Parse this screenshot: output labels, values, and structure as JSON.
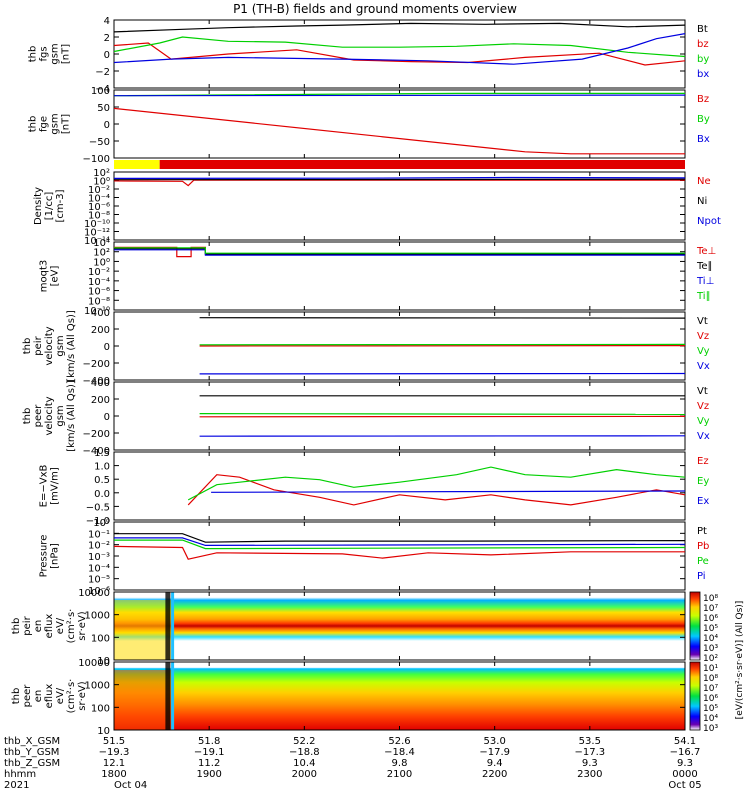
{
  "figure": {
    "title": "P1 (TH-B) fields and ground moments overview"
  },
  "colors": {
    "black": "#000000",
    "red": "#e00000",
    "green": "#00d000",
    "blue": "#0000e0",
    "yellow": "#ffff00"
  },
  "chart_data": [
    {
      "type": "line",
      "panel": "fgs_gsm",
      "ylabel": [
        "thb",
        "fgs",
        "gsm",
        "[nT]"
      ],
      "yticks": [
        "4",
        "2",
        "0",
        "−2",
        "−4"
      ],
      "ylim": [
        -4,
        4
      ],
      "series": [
        {
          "name": "Bt",
          "color": "black",
          "values": [
            [
              0,
              2.6
            ],
            [
              0.12,
              2.9
            ],
            [
              0.2,
              3.1
            ],
            [
              0.32,
              3.3
            ],
            [
              0.4,
              3.4
            ],
            [
              0.52,
              3.6
            ],
            [
              0.65,
              3.5
            ],
            [
              0.78,
              3.6
            ],
            [
              0.9,
              3.2
            ],
            [
              1.0,
              3.4
            ]
          ]
        },
        {
          "name": "bz",
          "color": "red",
          "values": [
            [
              0,
              1.0
            ],
            [
              0.06,
              1.3
            ],
            [
              0.1,
              -0.6
            ],
            [
              0.2,
              0.0
            ],
            [
              0.32,
              0.5
            ],
            [
              0.42,
              -0.7
            ],
            [
              0.52,
              -0.9
            ],
            [
              0.62,
              -1.0
            ],
            [
              0.72,
              -0.4
            ],
            [
              0.85,
              0.1
            ],
            [
              0.93,
              -1.3
            ],
            [
              1.0,
              -0.8
            ]
          ]
        },
        {
          "name": "by",
          "color": "green",
          "values": [
            [
              0,
              0.3
            ],
            [
              0.08,
              1.3
            ],
            [
              0.12,
              2.0
            ],
            [
              0.2,
              1.5
            ],
            [
              0.3,
              1.4
            ],
            [
              0.4,
              0.8
            ],
            [
              0.5,
              0.8
            ],
            [
              0.6,
              0.9
            ],
            [
              0.7,
              1.2
            ],
            [
              0.8,
              1.0
            ],
            [
              0.9,
              0.2
            ],
            [
              1.0,
              -0.3
            ]
          ]
        },
        {
          "name": "bx",
          "color": "blue",
          "values": [
            [
              0,
              -1.0
            ],
            [
              0.1,
              -0.6
            ],
            [
              0.2,
              -0.4
            ],
            [
              0.4,
              -0.6
            ],
            [
              0.55,
              -0.8
            ],
            [
              0.7,
              -1.2
            ],
            [
              0.82,
              -0.6
            ],
            [
              0.9,
              0.7
            ],
            [
              0.95,
              1.8
            ],
            [
              1.0,
              2.4
            ]
          ]
        }
      ]
    },
    {
      "type": "line",
      "panel": "fge_gsm",
      "ylabel": [
        "thb",
        "fge",
        "gsm",
        "[nT]"
      ],
      "yticks": [
        "100",
        "50",
        "0",
        "−50",
        "−100"
      ],
      "ylim": [
        -130,
        110
      ],
      "series": [
        {
          "name": "Bz",
          "color": "red",
          "values": [
            [
              0,
              45
            ],
            [
              0.72,
              -108
            ],
            [
              0.8,
              -115
            ],
            [
              1.0,
              -115
            ]
          ]
        },
        {
          "name": "By",
          "color": "green",
          "values": [
            [
              0,
              90
            ],
            [
              0.6,
              98
            ],
            [
              1.0,
              98
            ]
          ]
        },
        {
          "name": "Bx",
          "color": "blue",
          "values": [
            [
              0,
              90
            ],
            [
              1.0,
              92
            ]
          ]
        }
      ]
    },
    {
      "type": "line",
      "panel": "density",
      "ylabel": [
        "Density",
        "[1/cc]",
        "[cm-3]"
      ],
      "yticks": [
        "10²",
        "10⁰",
        "10⁻²",
        "10⁻⁴",
        "10⁻⁶",
        "10⁻⁸",
        "10⁻¹⁰",
        "10⁻¹²",
        "10⁻¹⁴"
      ],
      "ylim": [
        -14,
        2
      ],
      "series": [
        {
          "name": "Ne",
          "color": "red",
          "values": [
            [
              0,
              -0.1
            ],
            [
              0.12,
              -0.2
            ],
            [
              0.13,
              -1.2
            ],
            [
              0.14,
              0.1
            ],
            [
              1.0,
              0.1
            ]
          ]
        },
        {
          "name": "Ni",
          "color": "black",
          "values": [
            [
              0,
              0.2
            ],
            [
              1.0,
              0.3
            ]
          ]
        },
        {
          "name": "Npot",
          "color": "blue",
          "values": [
            [
              0,
              0.5
            ],
            [
              0.4,
              0.55
            ],
            [
              0.7,
              0.7
            ],
            [
              1.0,
              0.6
            ]
          ]
        }
      ]
    },
    {
      "type": "line",
      "panel": "temperature",
      "ylabel": [
        "moqt3",
        "[eV]"
      ],
      "yticks": [
        "10⁴",
        "10²",
        "10⁰",
        "10⁻²",
        "10⁻⁴",
        "10⁻⁶",
        "10⁻⁸",
        "10⁻¹⁰"
      ],
      "ylim": [
        -10,
        4
      ],
      "series": [
        {
          "name": "Te⊥",
          "color": "red",
          "values": [
            [
              0,
              2.9
            ],
            [
              0.11,
              2.9
            ],
            [
              0.11,
              1.0
            ],
            [
              0.135,
              1.0
            ],
            [
              0.135,
              2.9
            ],
            [
              0.16,
              2.9
            ],
            [
              0.16,
              1.6
            ],
            [
              1.0,
              1.6
            ]
          ]
        },
        {
          "name": "Te∥",
          "color": "black",
          "values": [
            [
              0,
              2.6
            ],
            [
              0.16,
              2.6
            ],
            [
              0.16,
              1.5
            ],
            [
              1.0,
              1.5
            ]
          ]
        },
        {
          "name": "Ti⊥",
          "color": "blue",
          "values": [
            [
              0,
              2.4
            ],
            [
              0.16,
              2.4
            ],
            [
              0.16,
              1.3
            ],
            [
              1.0,
              1.3
            ]
          ]
        },
        {
          "name": "Ti∥",
          "color": "green",
          "values": [
            [
              0,
              2.8
            ],
            [
              0.16,
              2.8
            ],
            [
              0.16,
              1.7
            ],
            [
              1.0,
              1.7
            ]
          ]
        }
      ]
    },
    {
      "type": "line",
      "panel": "peir_velocity",
      "ylabel": [
        "thb",
        "peir",
        "velocity",
        "gsm",
        "[km/s (All Qs)]"
      ],
      "yticks": [
        "400",
        "200",
        "0",
        "−200",
        "−400"
      ],
      "ylim": [
        -420,
        420
      ],
      "series": [
        {
          "name": "Vt",
          "color": "black",
          "values": [
            [
              0.15,
              350
            ],
            [
              1.0,
              345
            ]
          ]
        },
        {
          "name": "Vz",
          "color": "red",
          "values": [
            [
              0.15,
              0
            ],
            [
              1.0,
              5
            ]
          ]
        },
        {
          "name": "Vy",
          "color": "green",
          "values": [
            [
              0.15,
              15
            ],
            [
              1.0,
              20
            ]
          ]
        },
        {
          "name": "Vx",
          "color": "blue",
          "values": [
            [
              0.15,
              -345
            ],
            [
              1.0,
              -340
            ]
          ]
        }
      ]
    },
    {
      "type": "line",
      "panel": "peer_velocity",
      "ylabel": [
        "thb",
        "peer",
        "velocity",
        "gsm",
        "[km/s (All Qs)]"
      ],
      "yticks": [
        "400",
        "200",
        "0",
        "−200",
        "−400"
      ],
      "ylim": [
        -420,
        420
      ],
      "series": [
        {
          "name": "Vt",
          "color": "black",
          "values": [
            [
              0.15,
              250
            ],
            [
              1.0,
              250
            ]
          ]
        },
        {
          "name": "Vz",
          "color": "red",
          "values": [
            [
              0.15,
              -10
            ],
            [
              1.0,
              -5
            ]
          ]
        },
        {
          "name": "Vy",
          "color": "green",
          "values": [
            [
              0.15,
              30
            ],
            [
              1.0,
              20
            ]
          ]
        },
        {
          "name": "Vx",
          "color": "blue",
          "values": [
            [
              0.15,
              -250
            ],
            [
              1.0,
              -245
            ]
          ]
        }
      ]
    },
    {
      "type": "line",
      "panel": "efield",
      "ylabel": [
        "E=−VxB",
        "[mV/m]"
      ],
      "yticks": [
        "1.5",
        "1.0",
        "0.5",
        "0.0",
        "−0.5",
        "−1.0"
      ],
      "ylim": [
        -1.1,
        1.6
      ],
      "series": [
        {
          "name": "Ez",
          "color": "red",
          "values": [
            [
              0.13,
              -0.5
            ],
            [
              0.18,
              0.7
            ],
            [
              0.22,
              0.6
            ],
            [
              0.28,
              0.1
            ],
            [
              0.36,
              -0.2
            ],
            [
              0.42,
              -0.5
            ],
            [
              0.5,
              -0.1
            ],
            [
              0.58,
              -0.3
            ],
            [
              0.66,
              -0.1
            ],
            [
              0.72,
              -0.3
            ],
            [
              0.8,
              -0.5
            ],
            [
              0.88,
              -0.2
            ],
            [
              0.95,
              0.1
            ],
            [
              1.0,
              -0.1
            ]
          ]
        },
        {
          "name": "Ey",
          "color": "green",
          "values": [
            [
              0.13,
              -0.3
            ],
            [
              0.18,
              0.3
            ],
            [
              0.22,
              0.4
            ],
            [
              0.3,
              0.6
            ],
            [
              0.36,
              0.5
            ],
            [
              0.42,
              0.2
            ],
            [
              0.5,
              0.4
            ],
            [
              0.6,
              0.7
            ],
            [
              0.66,
              1.0
            ],
            [
              0.72,
              0.7
            ],
            [
              0.8,
              0.6
            ],
            [
              0.88,
              0.9
            ],
            [
              0.95,
              0.7
            ],
            [
              1.0,
              0.6
            ]
          ]
        },
        {
          "name": "Ex",
          "color": "blue",
          "values": [
            [
              0.17,
              0.0
            ],
            [
              1.0,
              0.05
            ]
          ]
        }
      ]
    },
    {
      "type": "line",
      "panel": "pressure",
      "ylabel": [
        "Pressure",
        "[nPa]"
      ],
      "yticks": [
        "10⁰",
        "10⁻¹",
        "10⁻²",
        "10⁻³",
        "10⁻⁴",
        "10⁻⁵",
        "10⁻⁶"
      ],
      "ylim": [
        -6.2,
        0.2
      ],
      "series": [
        {
          "name": "Pt",
          "color": "black",
          "values": [
            [
              0,
              -0.9
            ],
            [
              0.12,
              -0.9
            ],
            [
              0.16,
              -1.7
            ],
            [
              0.3,
              -1.6
            ],
            [
              0.6,
              -1.6
            ],
            [
              1.0,
              -1.55
            ]
          ]
        },
        {
          "name": "Pb",
          "color": "red",
          "values": [
            [
              0,
              -2.1
            ],
            [
              0.12,
              -2.2
            ],
            [
              0.13,
              -3.3
            ],
            [
              0.18,
              -2.7
            ],
            [
              0.4,
              -2.8
            ],
            [
              0.47,
              -3.2
            ],
            [
              0.55,
              -2.7
            ],
            [
              0.66,
              -2.9
            ],
            [
              0.8,
              -2.6
            ],
            [
              1.0,
              -2.6
            ]
          ]
        },
        {
          "name": "Pe",
          "color": "green",
          "values": [
            [
              0,
              -1.5
            ],
            [
              0.12,
              -1.5
            ],
            [
              0.16,
              -2.3
            ],
            [
              1.0,
              -2.2
            ]
          ]
        },
        {
          "name": "Pi",
          "color": "blue",
          "values": [
            [
              0,
              -1.3
            ],
            [
              0.12,
              -1.3
            ],
            [
              0.16,
              -2.0
            ],
            [
              1.0,
              -1.9
            ]
          ]
        }
      ]
    },
    {
      "type": "heatmap",
      "panel": "peir_spectrogram",
      "ylabel": [
        "thb",
        "peir",
        "en",
        "eflux",
        "eV/",
        "(cm²·s·",
        "sr·eV)"
      ],
      "yticks": [
        "10000",
        "1000",
        "100",
        "10"
      ],
      "ylim": [
        5,
        30000
      ]
    },
    {
      "type": "heatmap",
      "panel": "peer_spectrogram",
      "ylabel": [
        "thb",
        "peer",
        "en",
        "eflux",
        "eV/",
        "(cm²·s·",
        "sr·eV)"
      ],
      "yticks": [
        "10000",
        "1000",
        "100",
        "10"
      ],
      "ylim": [
        5,
        30000
      ]
    }
  ],
  "colorbar": {
    "ticks": [
      "10⁸",
      "10⁷",
      "10⁶",
      "10⁵",
      "10⁴",
      "10³",
      "10²",
      "10¹",
      "10⁸",
      "10⁷",
      "10⁶",
      "10⁵",
      "10⁴",
      "10³"
    ],
    "label": "[eV/(cm²·s·sr·eV)] (All Qs)]"
  },
  "xaxis": {
    "row_labels": [
      "thb_X_GSM",
      "thb_Y_GSM",
      "thb_Z_GSM",
      "hhmm",
      "2021"
    ],
    "columns": [
      {
        "x": 0.0,
        "rows": [
          "51.5",
          "−19.3",
          "12.1",
          "1800",
          "Oct 04"
        ]
      },
      {
        "x": 0.1667,
        "rows": [
          "51.8",
          "−19.1",
          "11.2",
          "1900",
          ""
        ]
      },
      {
        "x": 0.3333,
        "rows": [
          "52.2",
          "−18.8",
          "10.4",
          "2000",
          ""
        ]
      },
      {
        "x": 0.5,
        "rows": [
          "52.6",
          "−18.4",
          "9.8",
          "2100",
          ""
        ]
      },
      {
        "x": 0.6667,
        "rows": [
          "53.0",
          "−17.9",
          "9.4",
          "2200",
          ""
        ]
      },
      {
        "x": 0.8333,
        "rows": [
          "53.5",
          "−17.3",
          "9.3",
          "2300",
          ""
        ]
      },
      {
        "x": 1.0,
        "rows": [
          "54.1",
          "−16.7",
          "9.3",
          "0000",
          "Oct 05"
        ]
      }
    ]
  }
}
